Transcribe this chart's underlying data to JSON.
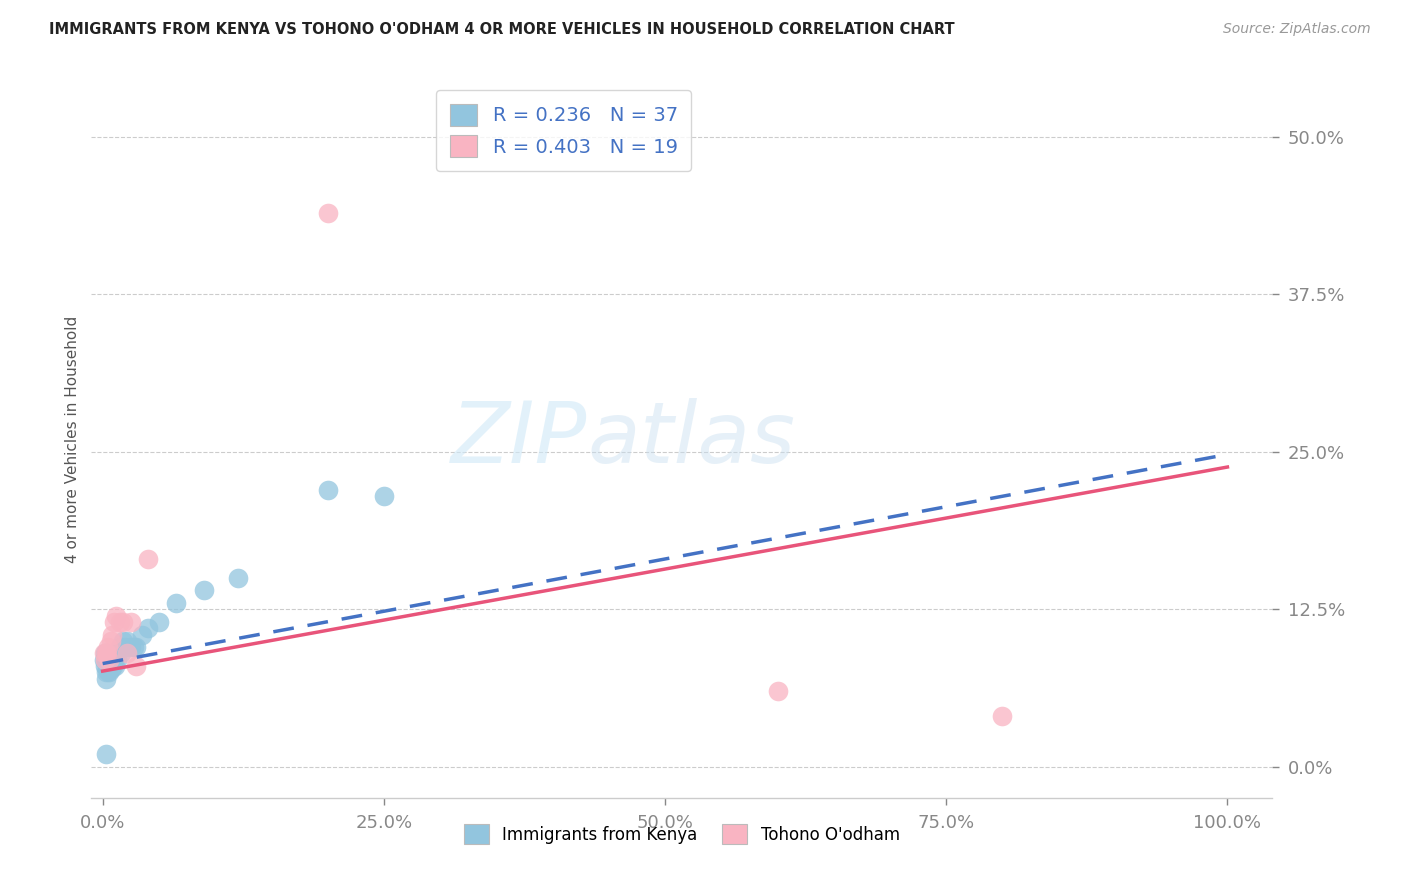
{
  "title": "IMMIGRANTS FROM KENYA VS TOHONO O'ODHAM 4 OR MORE VEHICLES IN HOUSEHOLD CORRELATION CHART",
  "source": "Source: ZipAtlas.com",
  "ylabel_label": "4 or more Vehicles in Household",
  "legend_label1": "Immigrants from Kenya",
  "legend_label2": "Tohono O'odham",
  "R1": 0.236,
  "N1": 37,
  "R2": 0.403,
  "N2": 19,
  "color_blue": "#92c5de",
  "color_pink": "#f9b4c2",
  "color_blue_line": "#4472c4",
  "color_pink_line": "#e8547a",
  "watermark_zip": "ZIP",
  "watermark_atlas": "atlas",
  "bg_color": "#ffffff",
  "blue_x": [
    0.001,
    0.002,
    0.002,
    0.003,
    0.003,
    0.003,
    0.004,
    0.004,
    0.005,
    0.005,
    0.006,
    0.006,
    0.007,
    0.007,
    0.008,
    0.009,
    0.01,
    0.011,
    0.012,
    0.013,
    0.015,
    0.016,
    0.018,
    0.02,
    0.022,
    0.025,
    0.028,
    0.03,
    0.035,
    0.04,
    0.05,
    0.065,
    0.09,
    0.12,
    0.2,
    0.25,
    0.003
  ],
  "blue_y": [
    0.085,
    0.09,
    0.08,
    0.085,
    0.075,
    0.07,
    0.082,
    0.078,
    0.076,
    0.08,
    0.08,
    0.075,
    0.085,
    0.078,
    0.082,
    0.08,
    0.085,
    0.08,
    0.09,
    0.085,
    0.095,
    0.09,
    0.1,
    0.095,
    0.1,
    0.095,
    0.095,
    0.095,
    0.105,
    0.11,
    0.115,
    0.13,
    0.14,
    0.15,
    0.22,
    0.215,
    0.01
  ],
  "pink_x": [
    0.001,
    0.002,
    0.003,
    0.004,
    0.005,
    0.006,
    0.007,
    0.008,
    0.01,
    0.012,
    0.015,
    0.018,
    0.022,
    0.025,
    0.03,
    0.04,
    0.6,
    0.8,
    0.2
  ],
  "pink_y": [
    0.09,
    0.085,
    0.09,
    0.09,
    0.095,
    0.085,
    0.1,
    0.105,
    0.115,
    0.12,
    0.115,
    0.115,
    0.09,
    0.115,
    0.08,
    0.165,
    0.06,
    0.04,
    0.44
  ],
  "blue_line_x0": 0.0,
  "blue_line_x1": 1.0,
  "blue_line_y0": 0.082,
  "blue_line_y1": 0.248,
  "pink_line_x0": 0.0,
  "pink_line_x1": 1.0,
  "pink_line_y0": 0.076,
  "pink_line_y1": 0.238,
  "xlim_min": -0.01,
  "xlim_max": 1.04,
  "ylim_min": -0.025,
  "ylim_max": 0.545,
  "xticks": [
    0.0,
    0.25,
    0.5,
    0.75,
    1.0
  ],
  "yticks": [
    0.0,
    0.125,
    0.25,
    0.375,
    0.5
  ],
  "xtick_labels": [
    "0.0%",
    "25.0%",
    "50.0%",
    "75.0%",
    "100.0%"
  ],
  "ytick_labels": [
    "0.0%",
    "12.5%",
    "25.0%",
    "37.5%",
    "50.0%"
  ]
}
